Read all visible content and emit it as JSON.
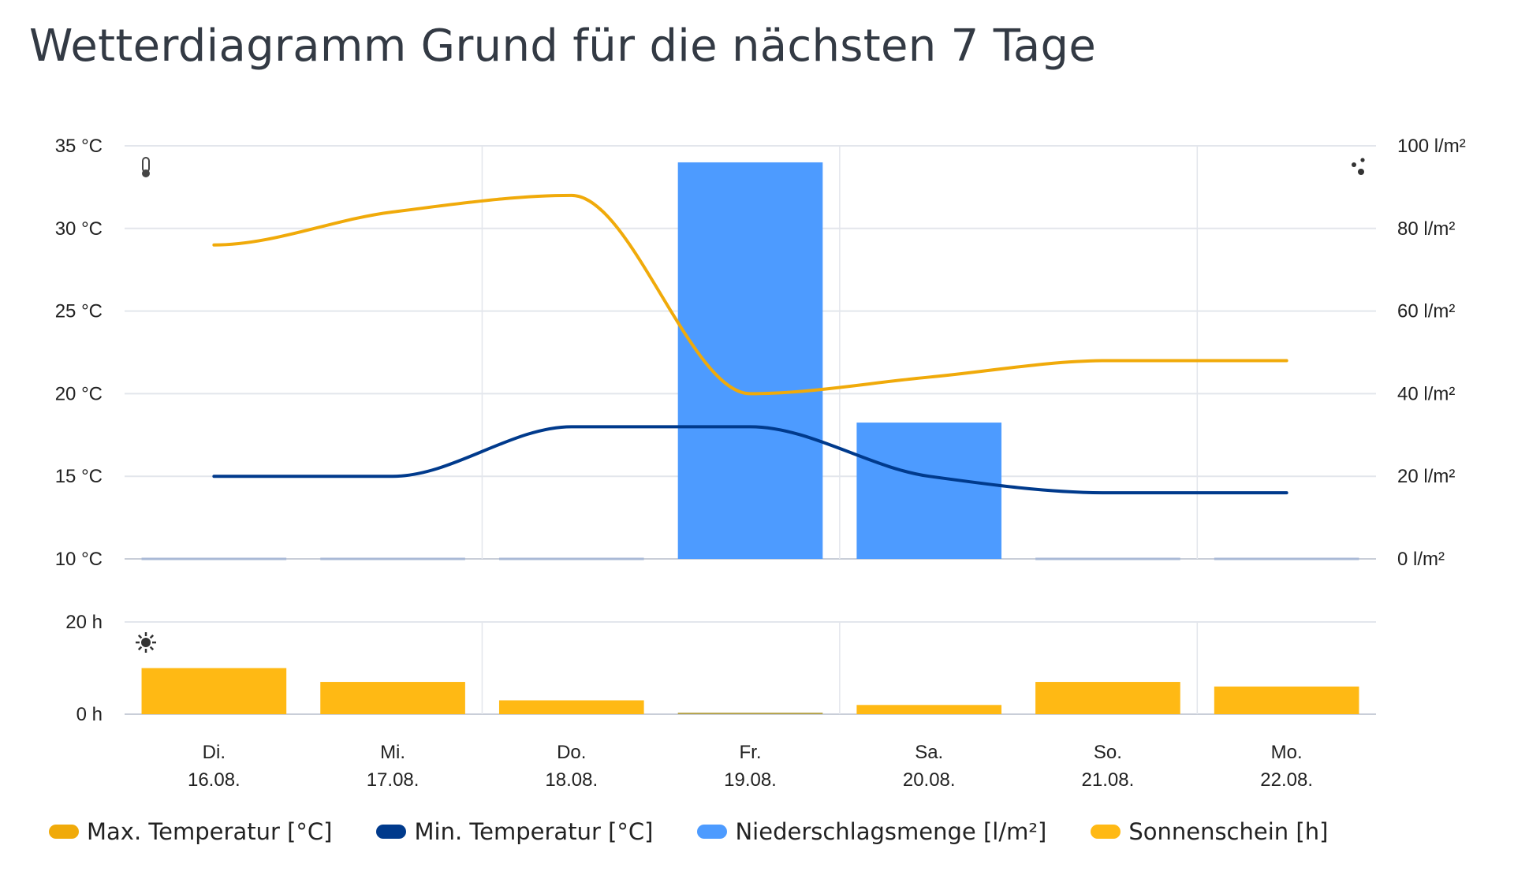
{
  "title": "Wetterdiagramm Grund für die nächsten 7 Tage",
  "chart_data": {
    "type": "line+bar",
    "title": "Wetterdiagramm Grund für die nächsten 7 Tage",
    "categories": [
      {
        "day": "Di.",
        "date": "16.08."
      },
      {
        "day": "Mi.",
        "date": "17.08."
      },
      {
        "day": "Do.",
        "date": "18.08."
      },
      {
        "day": "Fr.",
        "date": "19.08."
      },
      {
        "day": "Sa.",
        "date": "20.08."
      },
      {
        "day": "So.",
        "date": "21.08."
      },
      {
        "day": "Mo.",
        "date": "22.08."
      }
    ],
    "series": [
      {
        "name": "Max. Temperatur [°C]",
        "type": "line",
        "axis": "temp",
        "color": "#f0aa0a",
        "values": [
          29,
          31,
          32,
          20,
          21,
          22,
          22
        ]
      },
      {
        "name": "Min. Temperatur [°C]",
        "type": "line",
        "axis": "temp",
        "color": "#003a8c",
        "values": [
          15,
          15,
          18,
          18,
          15,
          14,
          14
        ]
      },
      {
        "name": "Niederschlagsmenge [l/m²]",
        "type": "bar",
        "axis": "precip",
        "color": "#4d9bff",
        "values": [
          0,
          0,
          0,
          96,
          33,
          0,
          0
        ]
      },
      {
        "name": "Sonnenschein [h]",
        "type": "bar",
        "axis": "sun",
        "color": "#ffb914",
        "values": [
          10,
          7,
          3,
          0,
          2,
          7,
          6
        ]
      }
    ],
    "axes": {
      "temp": {
        "range": [
          10,
          35
        ],
        "ticks": [
          "35 °C",
          "30 °C",
          "25 °C",
          "20 °C",
          "15 °C",
          "10 °C"
        ],
        "side": "left"
      },
      "precip": {
        "range": [
          0,
          100
        ],
        "ticks": [
          "100 l/m²",
          "80 l/m²",
          "60 l/m²",
          "40 l/m²",
          "20 l/m²",
          "0 l/m²"
        ],
        "side": "right"
      },
      "sun": {
        "range": [
          0,
          20
        ],
        "ticks": [
          "20 h",
          "0 h"
        ],
        "side": "left"
      }
    },
    "grid": true,
    "legend_position": "bottom",
    "icons": [
      "thermometer-icon",
      "raindrops-icon",
      "sun-icon"
    ]
  }
}
